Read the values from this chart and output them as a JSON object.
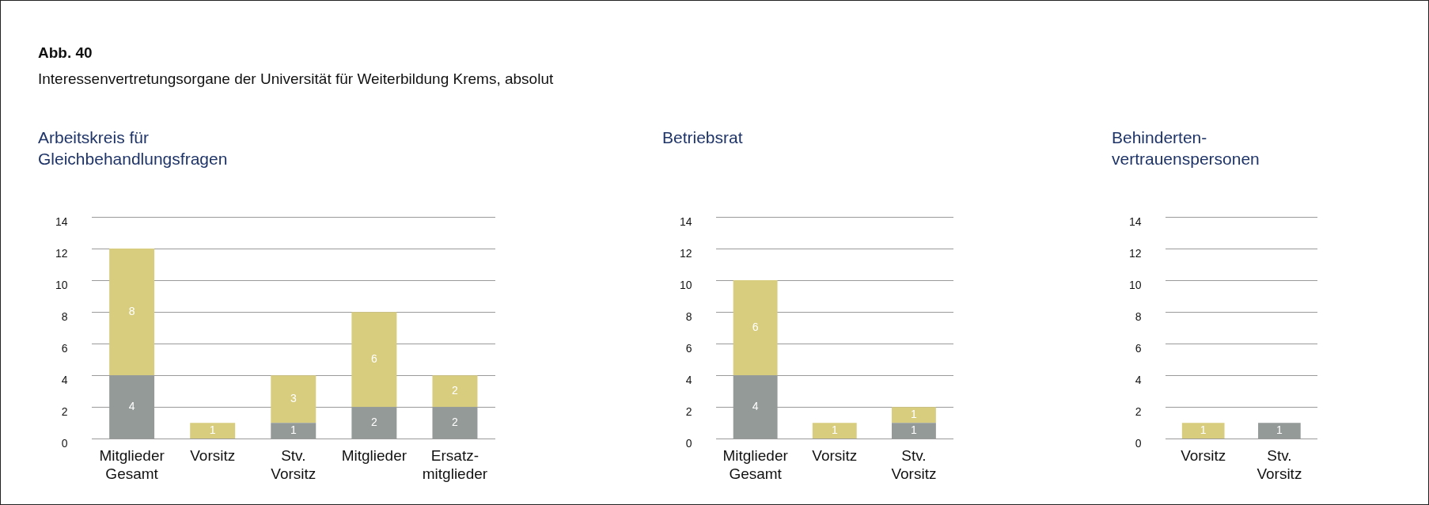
{
  "chart_data": [
    {
      "type": "bar",
      "title": "Arbeitskreis für\nGleichbehandlungsfragen",
      "annotations": [
        "Abb. 40",
        "Interessenvertretungsorgane der Universität für Weiterbildung Krems, absolut"
      ],
      "categories": [
        "Mitglieder\nGesamt",
        "Vorsitz",
        "Stv.\nVorsitz",
        "Mitglieder",
        "Ersatz-\nmitglieder"
      ],
      "stacked": true,
      "series": [
        {
          "color": "#939a98",
          "values": [
            4,
            null,
            1,
            2,
            2
          ]
        },
        {
          "color": "#d8cd7f",
          "values": [
            8,
            1,
            3,
            6,
            2
          ]
        }
      ],
      "ylim": [
        0,
        14
      ],
      "yticks": [
        0,
        2,
        4,
        6,
        8,
        10,
        12,
        14
      ],
      "grid": "y",
      "legend": false,
      "data_labels": true
    },
    {
      "type": "bar",
      "title": "Betriebsrat",
      "categories": [
        "Mitglieder\nGesamt",
        "Vorsitz",
        "Stv.\nVorsitz"
      ],
      "stacked": true,
      "series": [
        {
          "color": "#939a98",
          "values": [
            4,
            null,
            1
          ]
        },
        {
          "color": "#d8cd7f",
          "values": [
            6,
            1,
            1
          ]
        }
      ],
      "ylim": [
        0,
        14
      ],
      "yticks": [
        0,
        2,
        4,
        6,
        8,
        10,
        12,
        14
      ],
      "grid": "y",
      "legend": false,
      "data_labels": true
    },
    {
      "type": "bar",
      "title": "Behinderten-\nvertrauenspersonen",
      "categories": [
        "Vorsitz",
        "Stv.\nVorsitz"
      ],
      "stacked": true,
      "series": [
        {
          "color": "#939a98",
          "values": [
            null,
            1
          ]
        },
        {
          "color": "#d8cd7f",
          "values": [
            1,
            null
          ]
        }
      ],
      "ylim": [
        0,
        14
      ],
      "yticks": [
        0,
        2,
        4,
        6,
        8,
        10,
        12,
        14
      ],
      "grid": "y",
      "legend": false,
      "data_labels": true
    }
  ]
}
